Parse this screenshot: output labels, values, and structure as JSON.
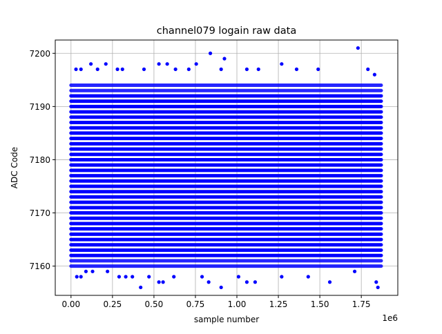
{
  "chart_data": {
    "type": "scatter",
    "title": "channel079 logain raw data",
    "xlabel": "sample number",
    "ylabel": "ADC Code",
    "x_offset_label": "1e6",
    "xlim": [
      -0.095,
      1.97
    ],
    "ylim": [
      7154.5,
      7202.5
    ],
    "xticks": [
      0.0,
      0.25,
      0.5,
      0.75,
      1.0,
      1.25,
      1.5,
      1.75
    ],
    "xtick_labels": [
      "0.00",
      "0.25",
      "0.50",
      "0.75",
      "1.00",
      "1.25",
      "1.50",
      "1.75"
    ],
    "yticks": [
      7160,
      7170,
      7180,
      7190,
      7200
    ],
    "ytick_labels": [
      "7160",
      "7170",
      "7180",
      "7190",
      "7200"
    ],
    "grid": true,
    "marker_color": "#0000ff",
    "dense_band": {
      "x_start": 0.0,
      "x_end": 1.87,
      "y_min": 7160,
      "y_max": 7194
    },
    "outliers": [
      {
        "x": 0.035,
        "y": 7158
      },
      {
        "x": 0.06,
        "y": 7158
      },
      {
        "x": 0.09,
        "y": 7159
      },
      {
        "x": 0.13,
        "y": 7159
      },
      {
        "x": 0.22,
        "y": 7159
      },
      {
        "x": 0.29,
        "y": 7158
      },
      {
        "x": 0.33,
        "y": 7158
      },
      {
        "x": 0.37,
        "y": 7158
      },
      {
        "x": 0.42,
        "y": 7156
      },
      {
        "x": 0.47,
        "y": 7158
      },
      {
        "x": 0.53,
        "y": 7157
      },
      {
        "x": 0.555,
        "y": 7157
      },
      {
        "x": 0.62,
        "y": 7158
      },
      {
        "x": 0.79,
        "y": 7158
      },
      {
        "x": 0.83,
        "y": 7157
      },
      {
        "x": 0.905,
        "y": 7156
      },
      {
        "x": 1.01,
        "y": 7158
      },
      {
        "x": 1.06,
        "y": 7157
      },
      {
        "x": 1.11,
        "y": 7157
      },
      {
        "x": 1.27,
        "y": 7158
      },
      {
        "x": 1.43,
        "y": 7158
      },
      {
        "x": 1.56,
        "y": 7157
      },
      {
        "x": 1.71,
        "y": 7159
      },
      {
        "x": 1.84,
        "y": 7157
      },
      {
        "x": 1.85,
        "y": 7156
      },
      {
        "x": 0.03,
        "y": 7197
      },
      {
        "x": 0.06,
        "y": 7197
      },
      {
        "x": 0.12,
        "y": 7198
      },
      {
        "x": 0.16,
        "y": 7197
      },
      {
        "x": 0.21,
        "y": 7198
      },
      {
        "x": 0.28,
        "y": 7197
      },
      {
        "x": 0.31,
        "y": 7197
      },
      {
        "x": 0.44,
        "y": 7197
      },
      {
        "x": 0.53,
        "y": 7198
      },
      {
        "x": 0.58,
        "y": 7198
      },
      {
        "x": 0.63,
        "y": 7197
      },
      {
        "x": 0.71,
        "y": 7197
      },
      {
        "x": 0.755,
        "y": 7198
      },
      {
        "x": 0.84,
        "y": 7200
      },
      {
        "x": 0.905,
        "y": 7197
      },
      {
        "x": 0.925,
        "y": 7199
      },
      {
        "x": 1.06,
        "y": 7197
      },
      {
        "x": 1.13,
        "y": 7197
      },
      {
        "x": 1.27,
        "y": 7198
      },
      {
        "x": 1.36,
        "y": 7197
      },
      {
        "x": 1.49,
        "y": 7197
      },
      {
        "x": 1.73,
        "y": 7201
      },
      {
        "x": 1.79,
        "y": 7197
      },
      {
        "x": 1.83,
        "y": 7196
      }
    ]
  }
}
